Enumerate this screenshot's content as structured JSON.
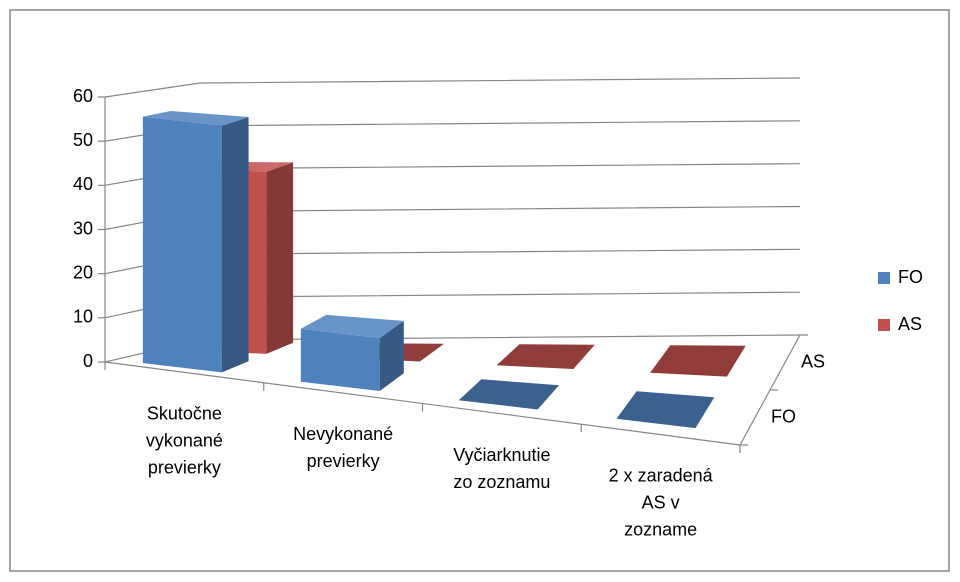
{
  "chart_data": {
    "type": "bar3d",
    "categories": [
      [
        "Skutočne",
        "vykonané",
        "previerky"
      ],
      [
        "Nevykonané",
        "previerky"
      ],
      [
        "Vyčiarknutie",
        "zo zoznamu"
      ],
      [
        "2 x zaradená",
        "AS v",
        "zozname"
      ]
    ],
    "series": [
      {
        "name": "FO",
        "color": "#4F81BD",
        "values": [
          56,
          12,
          0,
          0
        ]
      },
      {
        "name": "AS",
        "color": "#C0504D",
        "values": [
          42,
          0,
          0,
          0
        ]
      }
    ],
    "ylim": [
      0,
      60
    ],
    "yticks": [
      0,
      10,
      20,
      30,
      40,
      50,
      60
    ],
    "grid": true,
    "legend": "right"
  }
}
